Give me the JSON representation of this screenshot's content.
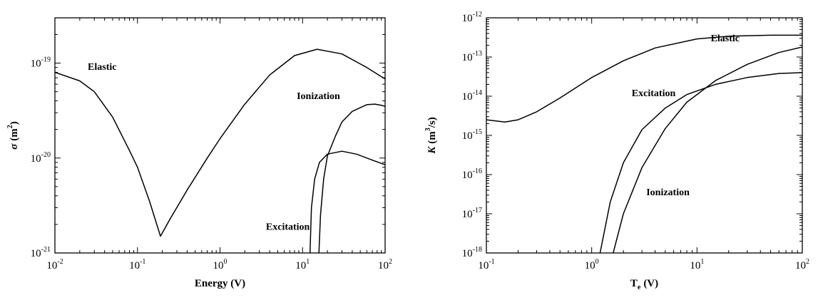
{
  "chart_data": [
    {
      "type": "line",
      "xscale": "log",
      "yscale": "log",
      "xlim": [
        0.01,
        100
      ],
      "ylim": [
        1e-21,
        3e-19
      ],
      "xlabel": "Energy (V)",
      "ylabel_symbol": "σ",
      "ylabel_unit": "(m",
      "ylabel_unit_sup": "2",
      "ylabel_unit_end": ")",
      "xticks": [
        {
          "value": 0.01,
          "base": "10",
          "exp": "-2"
        },
        {
          "value": 0.1,
          "base": "10",
          "exp": "-1"
        },
        {
          "value": 1,
          "base": "10",
          "exp": "0"
        },
        {
          "value": 10,
          "base": "10",
          "exp": "1"
        },
        {
          "value": 100,
          "base": "10",
          "exp": "2"
        }
      ],
      "yticks": [
        {
          "value": 1e-21,
          "base": "10",
          "exp": "-21"
        },
        {
          "value": 1e-20,
          "base": "10",
          "exp": "-20"
        },
        {
          "value": 1e-19,
          "base": "10",
          "exp": "-19"
        }
      ],
      "annotations": [
        {
          "text": "Elastic",
          "x": 0.025,
          "y": 8.5e-20
        },
        {
          "text": "Ionization",
          "x": 8.5,
          "y": 4.2e-20
        },
        {
          "text": "Excitation",
          "x": 3.6,
          "y": 1.75e-21
        }
      ],
      "series": [
        {
          "name": "Elastic",
          "points": [
            [
              0.01,
              8e-20
            ],
            [
              0.02,
              6.5e-20
            ],
            [
              0.03,
              5e-20
            ],
            [
              0.05,
              2.7e-20
            ],
            [
              0.08,
              1.2e-20
            ],
            [
              0.1,
              8e-21
            ],
            [
              0.14,
              3.5e-21
            ],
            [
              0.19,
              1.5e-21
            ],
            [
              0.25,
              2.3e-21
            ],
            [
              0.4,
              4.6e-21
            ],
            [
              0.7,
              1e-20
            ],
            [
              1,
              1.6e-20
            ],
            [
              2,
              3.7e-20
            ],
            [
              4,
              7.5e-20
            ],
            [
              8,
              1.2e-19
            ],
            [
              15,
              1.4e-19
            ],
            [
              30,
              1.25e-19
            ],
            [
              60,
              9e-20
            ],
            [
              100,
              6.8e-20
            ]
          ]
        },
        {
          "name": "Ionization",
          "points": [
            [
              15.8,
              1e-21
            ],
            [
              16.5,
              2.5e-21
            ],
            [
              18,
              6e-21
            ],
            [
              20,
              1.05e-20
            ],
            [
              25,
              1.7e-20
            ],
            [
              30,
              2.4e-20
            ],
            [
              40,
              3.1e-20
            ],
            [
              60,
              3.65e-20
            ],
            [
              75,
              3.7e-20
            ],
            [
              90,
              3.6e-20
            ],
            [
              100,
              3.5e-20
            ]
          ]
        },
        {
          "name": "Excitation",
          "points": [
            [
              12.3,
              1e-21
            ],
            [
              12.8,
              3e-21
            ],
            [
              14,
              6e-21
            ],
            [
              16,
              9e-21
            ],
            [
              20,
              1.1e-20
            ],
            [
              30,
              1.18e-20
            ],
            [
              45,
              1.1e-20
            ],
            [
              70,
              9.5e-21
            ],
            [
              100,
              8.5e-21
            ]
          ]
        }
      ]
    },
    {
      "type": "line",
      "xscale": "log",
      "yscale": "log",
      "xlim": [
        0.1,
        100
      ],
      "ylim": [
        1e-18,
        1e-12
      ],
      "xlabel_main": "T",
      "xlabel_sub": "e",
      "xlabel_unit": "(V)",
      "ylabel_symbol": "K",
      "ylabel_unit": "(m",
      "ylabel_unit_sup": "3",
      "ylabel_unit_end": "/s)",
      "xticks": [
        {
          "value": 0.1,
          "base": "10",
          "exp": "-1"
        },
        {
          "value": 1,
          "base": "10",
          "exp": "0"
        },
        {
          "value": 10,
          "base": "10",
          "exp": "1"
        },
        {
          "value": 100,
          "base": "10",
          "exp": "2"
        }
      ],
      "yticks": [
        {
          "value": 1e-18,
          "base": "10",
          "exp": "-18"
        },
        {
          "value": 1e-17,
          "base": "10",
          "exp": "-17"
        },
        {
          "value": 1e-16,
          "base": "10",
          "exp": "-16"
        },
        {
          "value": 1e-15,
          "base": "10",
          "exp": "-15"
        },
        {
          "value": 1e-14,
          "base": "10",
          "exp": "-14"
        },
        {
          "value": 1e-13,
          "base": "10",
          "exp": "-13"
        },
        {
          "value": 1e-12,
          "base": "10",
          "exp": "-12"
        }
      ],
      "annotations": [
        {
          "text": "Elastic",
          "x": 13.5,
          "y": 2.5e-13
        },
        {
          "text": "Excitation",
          "x": 2.4,
          "y": 1e-14
        },
        {
          "text": "Ionization",
          "x": 3.3,
          "y": 3e-17
        }
      ],
      "series": [
        {
          "name": "Elastic",
          "points": [
            [
              0.1,
              2.5e-15
            ],
            [
              0.15,
              2.2e-15
            ],
            [
              0.2,
              2.5e-15
            ],
            [
              0.3,
              4e-15
            ],
            [
              0.5,
              9e-15
            ],
            [
              1,
              3e-14
            ],
            [
              2,
              8e-14
            ],
            [
              4,
              1.7e-13
            ],
            [
              10,
              2.9e-13
            ],
            [
              20,
              3.4e-13
            ],
            [
              50,
              3.6e-13
            ],
            [
              100,
              3.6e-13
            ]
          ]
        },
        {
          "name": "Excitation",
          "points": [
            [
              1.2,
              1e-18
            ],
            [
              1.5,
              2e-17
            ],
            [
              2,
              2e-16
            ],
            [
              3,
              1.4e-15
            ],
            [
              5,
              5e-15
            ],
            [
              8,
              1.1e-14
            ],
            [
              15,
              2e-14
            ],
            [
              30,
              3e-14
            ],
            [
              60,
              3.8e-14
            ],
            [
              100,
              4e-14
            ]
          ]
        },
        {
          "name": "Ionization",
          "points": [
            [
              1.6,
              1e-18
            ],
            [
              2,
              1e-17
            ],
            [
              3,
              1.5e-16
            ],
            [
              5,
              1.5e-15
            ],
            [
              8,
              7e-15
            ],
            [
              15,
              2.5e-14
            ],
            [
              30,
              6.5e-14
            ],
            [
              60,
              1.3e-13
            ],
            [
              100,
              1.8e-13
            ]
          ]
        }
      ]
    }
  ]
}
